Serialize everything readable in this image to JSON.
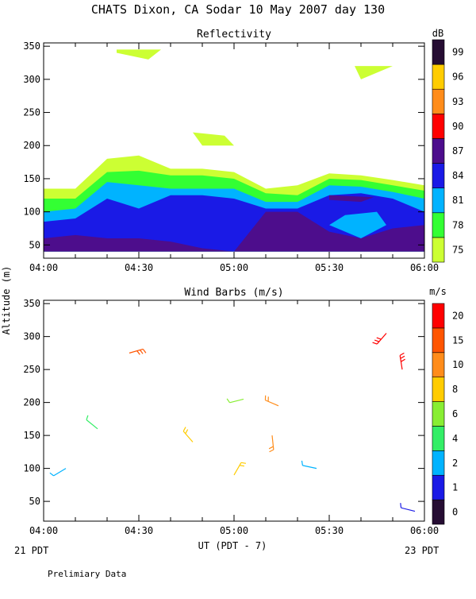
{
  "title": "CHATS Dixon, CA  Sodar  10 May 2007  day 130",
  "footer": {
    "start_label": "21 PDT",
    "end_label": "23 PDT",
    "note": "Prelimiary Data"
  },
  "chart_data": [
    {
      "type": "heatmap",
      "title": "Reflectivity",
      "xlabel": "UT  (PDT - 7)",
      "ylabel": "Altitude (m)",
      "xlim": [
        "04:00",
        "06:00"
      ],
      "ylim": [
        30,
        355
      ],
      "x_ticks": [
        "04:00",
        "04:30",
        "05:00",
        "05:30",
        "06:00"
      ],
      "y_ticks": [
        50,
        100,
        150,
        200,
        250,
        300,
        350
      ],
      "colorbar": {
        "unit": "dB",
        "levels": [
          75,
          78,
          81,
          84,
          87,
          90,
          93,
          96,
          99
        ],
        "colors": [
          "#ccff33",
          "#33ff33",
          "#00b3ff",
          "#1a1ae6",
          "#4d0d8c",
          "#ff0000",
          "#ff8c1a",
          "#ffcc00",
          "#260d33"
        ]
      },
      "contours": [
        {
          "level": 75,
          "x": [
            0,
            10,
            20,
            30,
            40,
            50,
            60,
            70,
            80,
            90,
            100,
            110,
            120
          ],
          "top": [
            135,
            135,
            180,
            185,
            165,
            165,
            160,
            135,
            140,
            158,
            155,
            148,
            140
          ]
        },
        {
          "level": 78,
          "x": [
            0,
            10,
            20,
            30,
            40,
            50,
            60,
            70,
            80,
            90,
            100,
            110,
            120
          ],
          "top": [
            120,
            120,
            160,
            162,
            155,
            155,
            150,
            128,
            125,
            150,
            148,
            140,
            132
          ]
        },
        {
          "level": 81,
          "x": [
            0,
            10,
            20,
            30,
            40,
            50,
            60,
            70,
            80,
            90,
            100,
            110,
            120
          ],
          "top": [
            100,
            105,
            145,
            140,
            135,
            135,
            135,
            115,
            115,
            140,
            138,
            130,
            120
          ]
        },
        {
          "level": 84,
          "x": [
            0,
            10,
            20,
            30,
            40,
            50,
            60,
            70,
            80,
            90,
            100,
            110,
            120
          ],
          "top": [
            85,
            90,
            120,
            105,
            125,
            125,
            120,
            105,
            105,
            125,
            128,
            120,
            100
          ]
        },
        {
          "level": 87,
          "x": [
            0,
            10,
            20,
            30,
            40,
            50,
            60,
            70,
            80,
            90,
            100,
            110,
            120
          ],
          "top": [
            60,
            65,
            60,
            60,
            55,
            45,
            40,
            100,
            100,
            70,
            60,
            75,
            80
          ]
        }
      ],
      "patches": [
        {
          "level": 75,
          "points": [
            [
              23,
              345
            ],
            [
              37,
              345
            ],
            [
              33,
              330
            ],
            [
              23,
              340
            ]
          ]
        },
        {
          "level": 75,
          "points": [
            [
              98,
              320
            ],
            [
              110,
              320
            ],
            [
              100,
              300
            ]
          ]
        },
        {
          "level": 75,
          "points": [
            [
              47,
              220
            ],
            [
              57,
              215
            ],
            [
              60,
              200
            ],
            [
              50,
              200
            ]
          ]
        },
        {
          "level": 81,
          "points": [
            [
              90,
              80
            ],
            [
              95,
              95
            ],
            [
              105,
              100
            ],
            [
              108,
              80
            ],
            [
              100,
              60
            ]
          ]
        },
        {
          "level": 87,
          "points": [
            [
              90,
              125
            ],
            [
              104,
              122
            ],
            [
              100,
              115
            ],
            [
              90,
              118
            ]
          ]
        }
      ]
    },
    {
      "type": "scatter",
      "title": "Wind Barbs (m/s)",
      "xlabel": "UT  (PDT - 7)",
      "ylabel": "Altitude (m)",
      "xlim": [
        "04:00",
        "06:00"
      ],
      "ylim": [
        20,
        355
      ],
      "x_ticks": [
        "04:00",
        "04:30",
        "05:00",
        "05:30",
        "06:00"
      ],
      "y_ticks": [
        50,
        100,
        150,
        200,
        250,
        300,
        350
      ],
      "colorbar": {
        "unit": "m/s",
        "levels": [
          0,
          1,
          2,
          4,
          6,
          8,
          10,
          15,
          20
        ],
        "colors": [
          "#260d33",
          "#1a1ae6",
          "#00b3ff",
          "#33ee66",
          "#88ee33",
          "#ffcc00",
          "#ff8c1a",
          "#ff5500",
          "#ff0000"
        ]
      },
      "barbs": [
        {
          "time": "04:07",
          "altitude": 100,
          "speed": 2
        },
        {
          "time": "04:17",
          "altitude": 160,
          "speed": 4
        },
        {
          "time": "04:27",
          "altitude": 275,
          "speed": 15
        },
        {
          "time": "04:47",
          "altitude": 140,
          "speed": 8
        },
        {
          "time": "05:00",
          "altitude": 90,
          "speed": 8
        },
        {
          "time": "05:03",
          "altitude": 205,
          "speed": 6
        },
        {
          "time": "05:14",
          "altitude": 195,
          "speed": 10
        },
        {
          "time": "05:12",
          "altitude": 150,
          "speed": 10
        },
        {
          "time": "05:26",
          "altitude": 100,
          "speed": 2
        },
        {
          "time": "05:48",
          "altitude": 305,
          "speed": 20
        },
        {
          "time": "05:53",
          "altitude": 250,
          "speed": 20
        },
        {
          "time": "05:57",
          "altitude": 35,
          "speed": 1
        }
      ]
    }
  ]
}
